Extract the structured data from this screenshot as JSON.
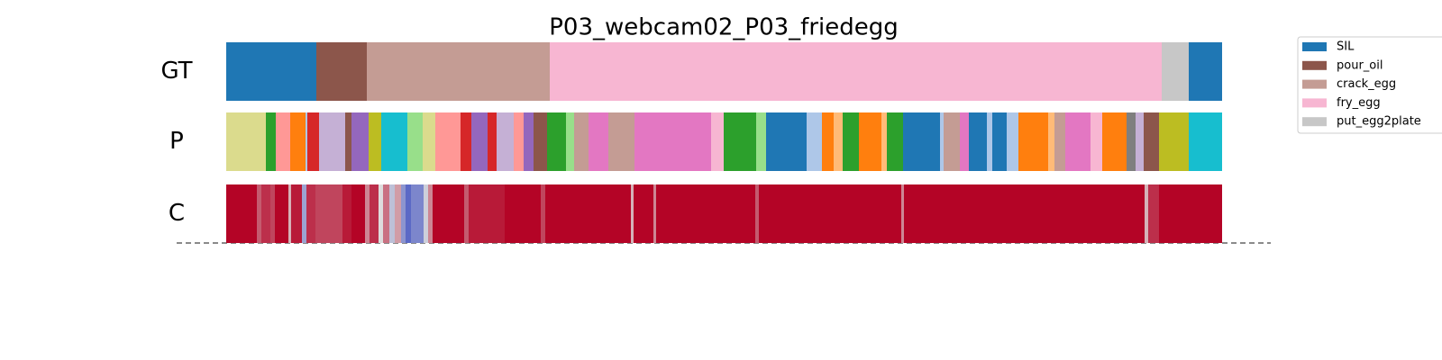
{
  "chart_data": {
    "type": "segmentation",
    "title": "P03_webcam02_P03_friedegg",
    "xlim": [
      0,
      1105
    ],
    "rows": [
      {
        "label": "GT",
        "bins": [
          0,
          100,
          156,
          359,
          1038,
          1068,
          1105
        ],
        "colors": [
          "#1f77b4",
          "#8c564b",
          "#c49c94",
          "#f7b6d2",
          "#c7c7c7",
          "#1f77b4"
        ]
      },
      {
        "label": "P",
        "bins": [
          0,
          44,
          55,
          71,
          88,
          90,
          103,
          132,
          139,
          158,
          172,
          201,
          218,
          232,
          260,
          272,
          290,
          300,
          319,
          330,
          341,
          356,
          377,
          386,
          402,
          424,
          453,
          538,
          552,
          588,
          599,
          644,
          661,
          674,
          684,
          702,
          727,
          733,
          751,
          792,
          796,
          814,
          824,
          844,
          850,
          866,
          879,
          912,
          919,
          931,
          959,
          972,
          999,
          1009,
          1018,
          1035,
          1068,
          1105
        ],
        "colors": [
          "#dbdb8d",
          "#2ca02c",
          "#ff9896",
          "#ff7f0e",
          "#aec7e8",
          "#d62728",
          "#c5b0d5",
          "#8c564b",
          "#9467bd",
          "#bcbd22",
          "#17becf",
          "#98df8a",
          "#dbdb8d",
          "#ff9896",
          "#d62728",
          "#9467bd",
          "#d62728",
          "#c5b0d5",
          "#ff9896",
          "#9467bd",
          "#8c564b",
          "#2ca02c",
          "#98df8a",
          "#c49c94",
          "#e377c2",
          "#c49c94",
          "#e377c2",
          "#f7b6d2",
          "#2ca02c",
          "#98df8a",
          "#1f77b4",
          "#aec7e8",
          "#ff7f0e",
          "#ffbb78",
          "#2ca02c",
          "#ff7f0e",
          "#ffbb78",
          "#2ca02c",
          "#1f77b4",
          "#aec7e8",
          "#c49c94",
          "#e377c2",
          "#1f77b4",
          "#aec7e8",
          "#1f77b4",
          "#aec7e8",
          "#ff7f0e",
          "#ffbb78",
          "#c49c94",
          "#e377c2",
          "#f7b6d2",
          "#ff7f0e",
          "#7f7f7f",
          "#c5b0d5",
          "#8c564b",
          "#bcbd22",
          "#17becf"
        ]
      },
      {
        "label": "C",
        "cmap": "coolwarm",
        "clim": [
          0,
          1
        ],
        "bins": [
          0,
          34,
          39,
          49,
          54,
          69,
          72,
          84,
          89,
          99,
          129,
          139,
          154,
          159,
          169,
          174,
          181,
          187,
          194,
          199,
          205,
          219,
          224,
          229,
          264,
          269,
          309,
          349,
          354,
          449,
          452,
          474,
          477,
          587,
          591,
          749,
          752,
          1019,
          1023,
          1035,
          1105
        ],
        "values": [
          1.0,
          0.8,
          0.9,
          0.85,
          1.0,
          0.6,
          0.95,
          0.3,
          0.9,
          0.85,
          0.95,
          1.0,
          0.7,
          0.9,
          0.5,
          0.75,
          0.4,
          0.65,
          0.25,
          0.1,
          0.2,
          0.45,
          0.7,
          1.0,
          0.8,
          0.95,
          1.0,
          0.85,
          1.0,
          0.6,
          1.0,
          0.7,
          1.0,
          0.8,
          1.0,
          0.7,
          1.0,
          0.6,
          0.9,
          1.0
        ]
      }
    ],
    "legend": [
      {
        "name": "SIL",
        "color": "#1f77b4"
      },
      {
        "name": "pour_oil",
        "color": "#8c564b"
      },
      {
        "name": "crack_egg",
        "color": "#c49c94"
      },
      {
        "name": "fry_egg",
        "color": "#f7b6d2"
      },
      {
        "name": "put_egg2plate",
        "color": "#c7c7c7"
      }
    ]
  }
}
